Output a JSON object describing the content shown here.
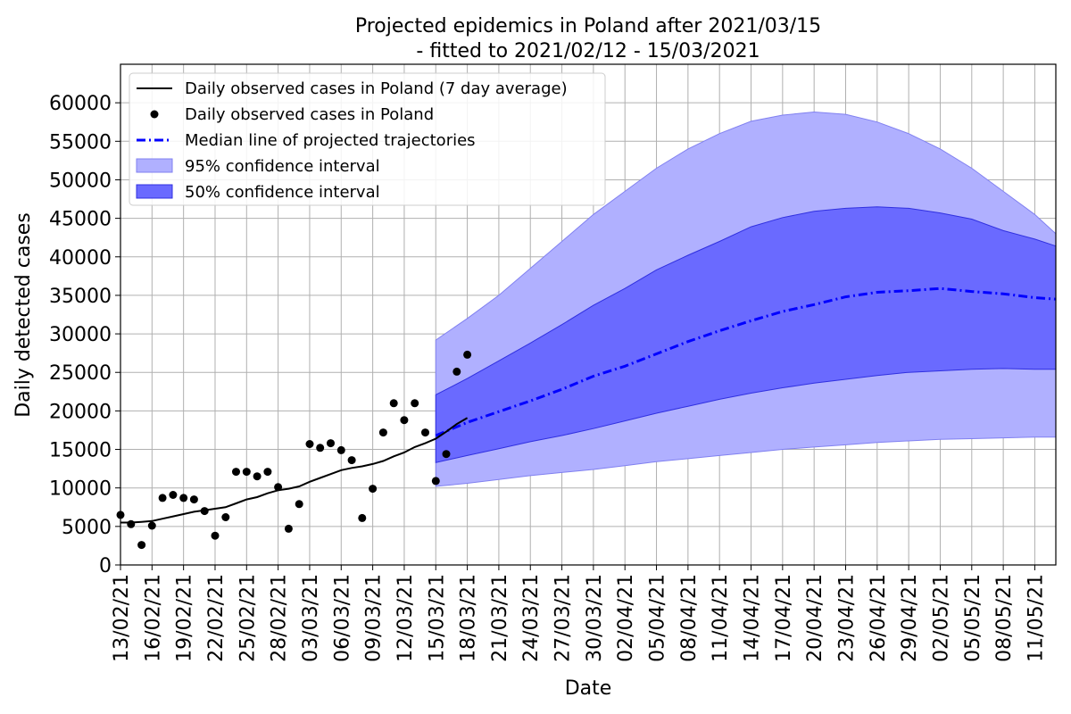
{
  "chart_data": {
    "type": "line",
    "title": "Projected epidemics in Poland after 2021/03/15",
    "subtitle": "- fitted to 2021/02/12 - 15/03/2021",
    "xlabel": "Date",
    "ylabel": "Daily detected cases",
    "xlim": [
      "2021-02-13",
      "2021-05-13"
    ],
    "ylim": [
      0,
      65000
    ],
    "grid": true,
    "legend_position": "top-left",
    "x_ticks": [
      "13/02/21",
      "16/02/21",
      "19/02/21",
      "22/02/21",
      "25/02/21",
      "28/02/21",
      "03/03/21",
      "06/03/21",
      "09/03/21",
      "12/03/21",
      "15/03/21",
      "18/03/21",
      "21/03/21",
      "24/03/21",
      "27/03/21",
      "30/03/21",
      "02/04/21",
      "05/04/21",
      "08/04/21",
      "11/04/21",
      "14/04/21",
      "17/04/21",
      "20/04/21",
      "23/04/21",
      "26/04/21",
      "29/04/21",
      "02/05/21",
      "05/05/21",
      "08/05/21",
      "11/05/21"
    ],
    "y_ticks": [
      0,
      5000,
      10000,
      15000,
      20000,
      25000,
      30000,
      35000,
      40000,
      45000,
      50000,
      55000,
      60000
    ],
    "colors": {
      "observed": "#000000",
      "median": "#0000ff",
      "ci95": "#b0b0ff",
      "ci95_edge": "#8080f0",
      "ci50": "#6a6aff",
      "ci50_edge": "#3030e0",
      "grid": "#b0b0b0"
    },
    "legend": [
      {
        "key": "avg",
        "label": "Daily observed cases in Poland (7 day average)"
      },
      {
        "key": "obs",
        "label": "Daily observed cases in Poland"
      },
      {
        "key": "median",
        "label": "Median line of projected trajectories"
      },
      {
        "key": "ci95",
        "label": "95% confidence interval"
      },
      {
        "key": "ci50",
        "label": "50% confidence interval"
      }
    ],
    "series": [
      {
        "name": "Daily observed cases in Poland (7 day average)",
        "style": "line",
        "x": [
          "2021-02-13",
          "2021-02-14",
          "2021-02-15",
          "2021-02-16",
          "2021-02-17",
          "2021-02-18",
          "2021-02-19",
          "2021-02-20",
          "2021-02-21",
          "2021-02-22",
          "2021-02-23",
          "2021-02-24",
          "2021-02-25",
          "2021-02-26",
          "2021-02-27",
          "2021-02-28",
          "2021-03-01",
          "2021-03-02",
          "2021-03-03",
          "2021-03-04",
          "2021-03-05",
          "2021-03-06",
          "2021-03-07",
          "2021-03-08",
          "2021-03-09",
          "2021-03-10",
          "2021-03-11",
          "2021-03-12",
          "2021-03-13",
          "2021-03-14",
          "2021-03-15",
          "2021-03-16",
          "2021-03-17",
          "2021-03-18"
        ],
        "y": [
          5500,
          5500,
          5600,
          5700,
          6000,
          6300,
          6600,
          6900,
          7100,
          7300,
          7500,
          8000,
          8500,
          8800,
          9300,
          9700,
          9900,
          10200,
          10800,
          11300,
          11800,
          12300,
          12600,
          12800,
          13100,
          13500,
          14100,
          14600,
          15300,
          15800,
          16400,
          17300,
          18300,
          19100
        ]
      },
      {
        "name": "Daily observed cases in Poland",
        "style": "points",
        "x": [
          "2021-02-13",
          "2021-02-14",
          "2021-02-15",
          "2021-02-16",
          "2021-02-17",
          "2021-02-18",
          "2021-02-19",
          "2021-02-20",
          "2021-02-21",
          "2021-02-22",
          "2021-02-23",
          "2021-02-24",
          "2021-02-25",
          "2021-02-26",
          "2021-02-27",
          "2021-02-28",
          "2021-03-01",
          "2021-03-02",
          "2021-03-03",
          "2021-03-04",
          "2021-03-05",
          "2021-03-06",
          "2021-03-07",
          "2021-03-08",
          "2021-03-09",
          "2021-03-10",
          "2021-03-11",
          "2021-03-12",
          "2021-03-13",
          "2021-03-14",
          "2021-03-15",
          "2021-03-16",
          "2021-03-17",
          "2021-03-18"
        ],
        "y": [
          6500,
          5300,
          2600,
          5100,
          8700,
          9100,
          8700,
          8500,
          7000,
          3800,
          6200,
          12100,
          12100,
          11500,
          12100,
          10100,
          4700,
          7900,
          15700,
          15200,
          15800,
          14900,
          13600,
          6100,
          9900,
          17200,
          21000,
          18800,
          21000,
          17200,
          10900,
          14400,
          25100,
          27300
        ]
      },
      {
        "name": "Median line of projected trajectories",
        "style": "dashdot",
        "x": [
          "2021-03-15",
          "2021-03-18",
          "2021-03-21",
          "2021-03-24",
          "2021-03-27",
          "2021-03-30",
          "2021-04-02",
          "2021-04-05",
          "2021-04-08",
          "2021-04-11",
          "2021-04-14",
          "2021-04-17",
          "2021-04-20",
          "2021-04-23",
          "2021-04-26",
          "2021-04-29",
          "2021-05-02",
          "2021-05-05",
          "2021-05-08",
          "2021-05-11",
          "2021-05-13"
        ],
        "y": [
          16800,
          18500,
          19900,
          21300,
          22800,
          24500,
          25800,
          27400,
          29000,
          30400,
          31700,
          32900,
          33800,
          34800,
          35400,
          35600,
          35900,
          35500,
          35200,
          34700,
          34500
        ]
      }
    ],
    "bands": [
      {
        "name": "95% confidence interval",
        "x": [
          "2021-03-15",
          "2021-03-18",
          "2021-03-21",
          "2021-03-24",
          "2021-03-27",
          "2021-03-30",
          "2021-04-02",
          "2021-04-05",
          "2021-04-08",
          "2021-04-11",
          "2021-04-14",
          "2021-04-17",
          "2021-04-20",
          "2021-04-23",
          "2021-04-26",
          "2021-04-29",
          "2021-05-02",
          "2021-05-05",
          "2021-05-08",
          "2021-05-11",
          "2021-05-13"
        ],
        "lower": [
          10200,
          10600,
          11100,
          11600,
          12000,
          12400,
          12900,
          13400,
          13800,
          14200,
          14600,
          15000,
          15300,
          15600,
          15900,
          16100,
          16300,
          16400,
          16500,
          16600,
          16600
        ],
        "upper": [
          29200,
          32000,
          35000,
          38500,
          42000,
          45500,
          48500,
          51500,
          54000,
          56000,
          57600,
          58400,
          58800,
          58500,
          57500,
          56000,
          54000,
          51500,
          48500,
          45500,
          43000
        ]
      },
      {
        "name": "50% confidence interval",
        "x": [
          "2021-03-15",
          "2021-03-18",
          "2021-03-21",
          "2021-03-24",
          "2021-03-27",
          "2021-03-30",
          "2021-04-02",
          "2021-04-05",
          "2021-04-08",
          "2021-04-11",
          "2021-04-14",
          "2021-04-17",
          "2021-04-20",
          "2021-04-23",
          "2021-04-26",
          "2021-04-29",
          "2021-05-02",
          "2021-05-05",
          "2021-05-08",
          "2021-05-11",
          "2021-05-13"
        ],
        "lower": [
          13300,
          14200,
          15100,
          16000,
          16800,
          17700,
          18700,
          19700,
          20600,
          21500,
          22300,
          23000,
          23600,
          24100,
          24600,
          25000,
          25200,
          25400,
          25500,
          25400,
          25400
        ],
        "upper": [
          22100,
          24200,
          26500,
          28800,
          31200,
          33700,
          35900,
          38300,
          40200,
          42000,
          43900,
          45100,
          45900,
          46300,
          46500,
          46300,
          45700,
          44900,
          43400,
          42300,
          41400
        ]
      }
    ]
  }
}
